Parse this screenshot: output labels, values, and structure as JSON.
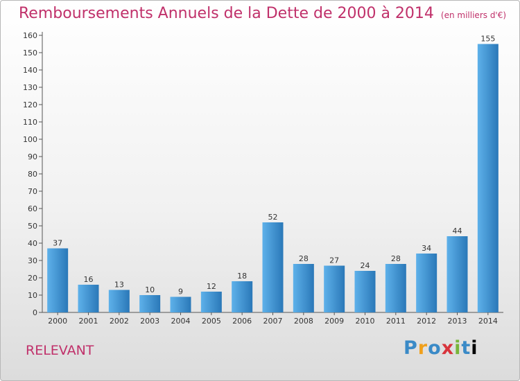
{
  "title": "Remboursements Annuels de la Dette de 2000 à 2014",
  "subtitle": "(en milliers d'€)",
  "commune": "RELEVANT",
  "logo_text": "Proxiti",
  "colors": {
    "accent": "#c0306a",
    "bar_light": "#5eb1ea",
    "bar_dark": "#2a78b8"
  },
  "chart_data": {
    "type": "bar",
    "title": "Remboursements Annuels de la Dette de 2000 à 2014",
    "subtitle": "(en milliers d'€)",
    "categories": [
      "2000",
      "2001",
      "2002",
      "2003",
      "2004",
      "2005",
      "2006",
      "2007",
      "2008",
      "2009",
      "2010",
      "2011",
      "2012",
      "2013",
      "2014"
    ],
    "values": [
      37,
      16,
      13,
      10,
      9,
      12,
      18,
      52,
      28,
      27,
      24,
      28,
      34,
      44,
      155
    ],
    "ylim": [
      0,
      160
    ],
    "ytick_step": 10,
    "grid": false,
    "data_labels": true
  }
}
